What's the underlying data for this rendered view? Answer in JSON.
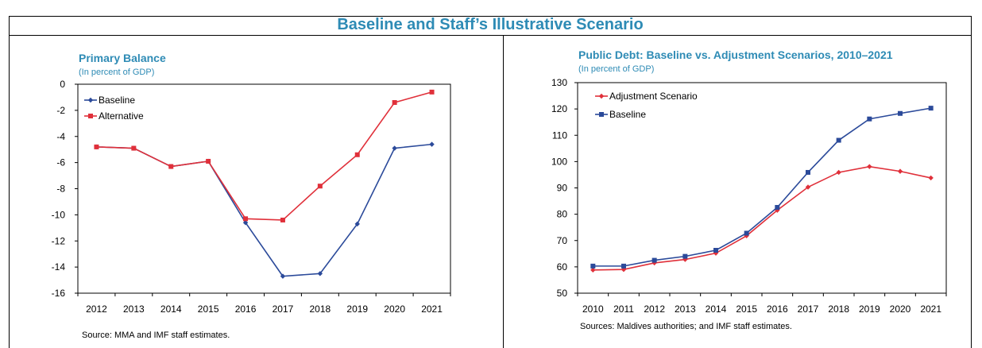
{
  "page_title": "Baseline and Staff’s Illustrative Scenario",
  "colors": {
    "title": "#2e8bb5",
    "blue": "#2b4a9a",
    "red": "#e0303a"
  },
  "chart_data": [
    {
      "type": "line",
      "title": "Primary Balance",
      "subtitle": "(In percent of GDP)",
      "source": "Source: MMA and IMF staff estimates.",
      "categories": [
        "2012",
        "2013",
        "2014",
        "2015",
        "2016",
        "2017",
        "2018",
        "2019",
        "2020",
        "2021"
      ],
      "ylim": [
        -16,
        0
      ],
      "yticks": [
        0,
        -2,
        -4,
        -6,
        -8,
        -10,
        -12,
        -14,
        -16
      ],
      "ytick_labels": [
        "0",
        "-2",
        "-4",
        "-6",
        "-8",
        "-10",
        "-12",
        "-14",
        "-16"
      ],
      "legend_position": "top-left",
      "series": [
        {
          "name": "Baseline",
          "color": "#2b4a9a",
          "marker": "diamond",
          "values": [
            -4.8,
            -4.9,
            -6.3,
            -5.9,
            -10.6,
            -14.7,
            -14.5,
            -10.7,
            -4.9,
            -4.6
          ]
        },
        {
          "name": "Alternative",
          "color": "#e0303a",
          "marker": "square",
          "values": [
            -4.8,
            -4.9,
            -6.3,
            -5.9,
            -10.3,
            -10.4,
            -7.8,
            -5.4,
            -1.4,
            -0.6
          ]
        }
      ]
    },
    {
      "type": "line",
      "title": "Public Debt: Baseline vs. Adjustment Scenarios, 2010–2021",
      "subtitle": "(In percent of GDP)",
      "source": "Sources: Maldives authorities; and IMF staff estimates.",
      "categories": [
        "2010",
        "2011",
        "2012",
        "2013",
        "2014",
        "2015",
        "2016",
        "2017",
        "2018",
        "2019",
        "2020",
        "2021"
      ],
      "ylim": [
        50,
        130
      ],
      "yticks": [
        130,
        120,
        110,
        100,
        90,
        80,
        70,
        60,
        50
      ],
      "ytick_labels": [
        "130",
        "120",
        "110",
        "100",
        "90",
        "80",
        "70",
        "60",
        "50"
      ],
      "legend_position": "top-left",
      "series": [
        {
          "name": "Adjustment Scenario",
          "color": "#e0303a",
          "marker": "diamond",
          "values": [
            58.8,
            59.0,
            61.5,
            62.8,
            65.2,
            71.8,
            81.5,
            90.3,
            95.9,
            98.1,
            96.3,
            93.8
          ]
        },
        {
          "name": "Baseline",
          "color": "#2b4a9a",
          "marker": "square",
          "values": [
            60.3,
            60.3,
            62.5,
            64.0,
            66.3,
            72.8,
            82.6,
            95.9,
            108.1,
            116.2,
            118.3,
            120.3
          ]
        }
      ]
    }
  ]
}
